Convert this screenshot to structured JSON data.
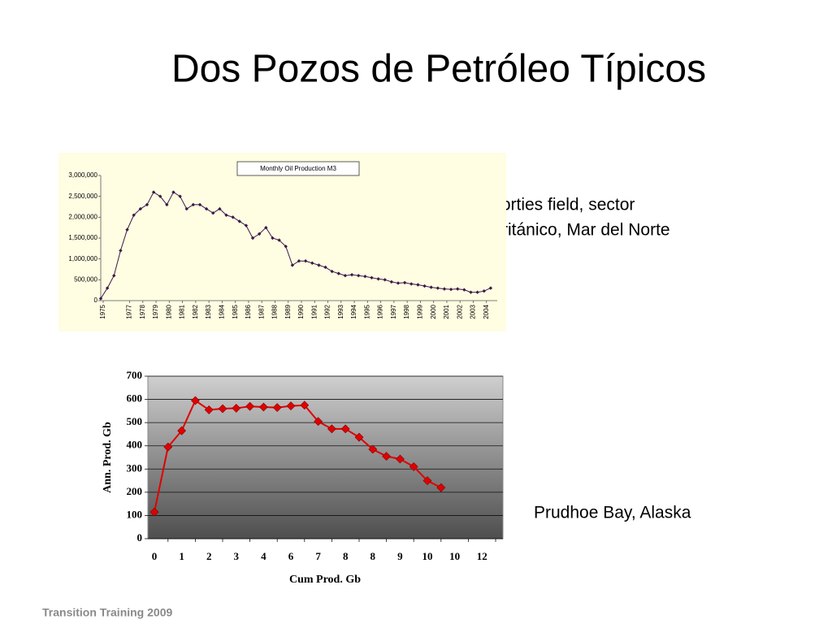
{
  "slide": {
    "title": "Dos Pozos de Petróleo Típicos",
    "caption_1": [
      "Forties field, sector",
      "Británico, Mar del Norte"
    ],
    "caption_2": "Prudhoe Bay, Alaska",
    "footer": "Transition Training 2009"
  },
  "chart_data": [
    {
      "type": "line",
      "title": "Monthly Oil Production M3",
      "color": "#3a1848",
      "x": [
        1975.0,
        1975.5,
        1976.0,
        1976.5,
        1977.0,
        1977.5,
        1978.0,
        1978.5,
        1979.0,
        1979.5,
        1980.0,
        1980.5,
        1981.0,
        1981.5,
        1982.0,
        1982.5,
        1983.0,
        1983.5,
        1984.0,
        1984.5,
        1985.0,
        1985.5,
        1986.0,
        1986.5,
        1987.0,
        1987.5,
        1988.0,
        1988.5,
        1989.0,
        1989.5,
        1990.0,
        1990.5,
        1991.0,
        1991.5,
        1992.0,
        1992.5,
        1993.0,
        1993.5,
        1994.0,
        1994.5,
        1995.0,
        1995.5,
        1996.0,
        1996.5,
        1997.0,
        1997.5,
        1998.0,
        1998.5,
        1999.0,
        1999.5,
        2000.0,
        2000.5,
        2001.0,
        2001.5,
        2002.0,
        2002.5,
        2003.0,
        2003.5,
        2004.0,
        2004.5
      ],
      "values": [
        50000,
        300000,
        600000,
        1200000,
        1700000,
        2050000,
        2200000,
        2300000,
        2600000,
        2500000,
        2300000,
        2600000,
        2500000,
        2200000,
        2300000,
        2300000,
        2200000,
        2100000,
        2200000,
        2050000,
        2000000,
        1900000,
        1800000,
        1500000,
        1600000,
        1750000,
        1500000,
        1450000,
        1300000,
        850000,
        950000,
        950000,
        900000,
        850000,
        800000,
        700000,
        650000,
        600000,
        620000,
        600000,
        580000,
        550000,
        520000,
        500000,
        450000,
        420000,
        430000,
        400000,
        380000,
        350000,
        320000,
        300000,
        280000,
        270000,
        280000,
        260000,
        200000,
        200000,
        230000,
        300000
      ],
      "xlim": [
        1975,
        2005
      ],
      "xticks": [
        1975,
        1977,
        1978,
        1979,
        1980,
        1981,
        1982,
        1983,
        1984,
        1985,
        1986,
        1987,
        1988,
        1989,
        1990,
        1991,
        1992,
        1993,
        1994,
        1995,
        1996,
        1997,
        1998,
        1999,
        2000,
        2001,
        2002,
        2003,
        2004
      ],
      "ylim": [
        0,
        3000000
      ],
      "yticks": [
        0,
        {
          "value": 500000,
          "label": "500,000"
        },
        {
          "value": 1000000,
          "label": "1,000,000"
        },
        {
          "value": 1500000,
          "label": "1,500,000"
        },
        {
          "value": 2000000,
          "label": "2,000,000"
        },
        {
          "value": 2500000,
          "label": "2,500,000"
        },
        {
          "value": 3000000,
          "label": "3,000,000"
        }
      ]
    },
    {
      "type": "line",
      "color": "#e00000",
      "x_label": "Cum Prod. Gb",
      "y_label": "Ann. Prod. Gb",
      "categories": [
        "0",
        null,
        "1",
        null,
        "2",
        null,
        "3",
        null,
        "4",
        null,
        "6",
        null,
        "7",
        null,
        "8",
        null,
        "8",
        null,
        "9",
        null,
        "10",
        null,
        "10",
        null,
        "12"
      ],
      "values": [
        115,
        395,
        465,
        595,
        555,
        560,
        562,
        570,
        567,
        565,
        572,
        575,
        505,
        473,
        473,
        437,
        385,
        355,
        343,
        310,
        250,
        220,
        null,
        null,
        null
      ],
      "ylim": [
        0,
        700
      ],
      "yticks": [
        0,
        100,
        200,
        300,
        400,
        500,
        600,
        700
      ],
      "grid": true
    }
  ]
}
